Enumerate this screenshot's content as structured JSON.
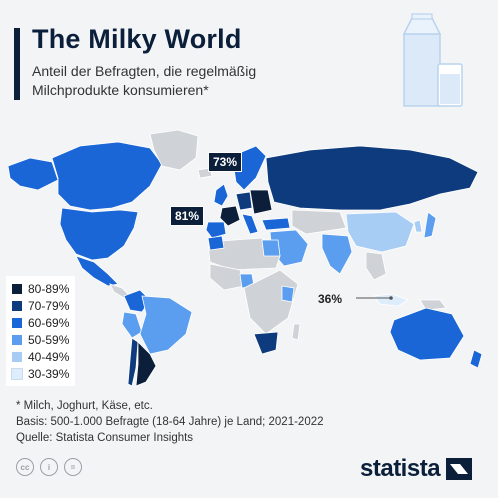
{
  "header": {
    "title": "The Milky World",
    "subtitle": "Anteil der Befragten, die regelmäßig Milchprodukte konsumieren*"
  },
  "chart_data": {
    "type": "choropleth-map",
    "title": "The Milky World",
    "subtitle": "Anteil der Befragten, die regelmäßig Milchprodukte konsumieren*",
    "legend": {
      "position": "bottom-left",
      "bins": [
        {
          "label": "80-89%",
          "color": "#0b1f3a"
        },
        {
          "label": "70-79%",
          "color": "#0d3b7d"
        },
        {
          "label": "60-69%",
          "color": "#1a66d6"
        },
        {
          "label": "50-59%",
          "color": "#5b9ef0"
        },
        {
          "label": "40-49%",
          "color": "#a8cdf5"
        },
        {
          "label": "30-39%",
          "color": "#deedfb"
        }
      ]
    },
    "annotations": [
      {
        "label": "73%",
        "bin": "70-79%"
      },
      {
        "label": "81%",
        "bin": "80-89%"
      },
      {
        "label": "36%",
        "bin": "30-39%"
      }
    ]
  },
  "notes": {
    "footnote": "* Milch, Joghurt, Käse, etc.",
    "basis": "Basis: 500-1.000 Befragte (18-64 Jahre) je Land; 2021-2022",
    "source": "Quelle: Statista Consumer Insights"
  },
  "footer": {
    "brand": "statista",
    "icons": [
      "cc-icon",
      "attribution-icon",
      "noderivs-icon"
    ],
    "icon_labels": [
      "cc",
      "i",
      "="
    ]
  }
}
